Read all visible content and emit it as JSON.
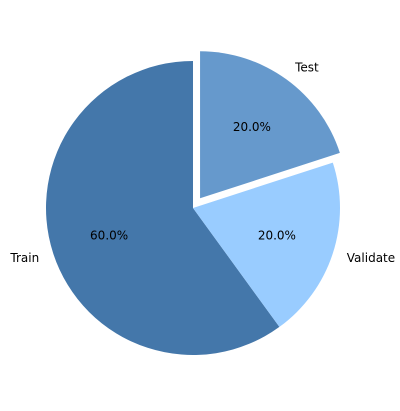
{
  "chart_data": {
    "type": "pie",
    "title": "",
    "slices": [
      {
        "label": "Train",
        "value": 60.0,
        "pct_text": "60.0%",
        "color": "#4477aa",
        "exploded": false
      },
      {
        "label": "Validate",
        "value": 20.0,
        "pct_text": "20.0%",
        "color": "#99ccff",
        "exploded": false
      },
      {
        "label": "Test",
        "value": 20.0,
        "pct_text": "20.0%",
        "color": "#6699cc",
        "exploded": true
      }
    ],
    "start_angle_deg": 90,
    "direction": "counterclockwise",
    "legend": "none"
  }
}
